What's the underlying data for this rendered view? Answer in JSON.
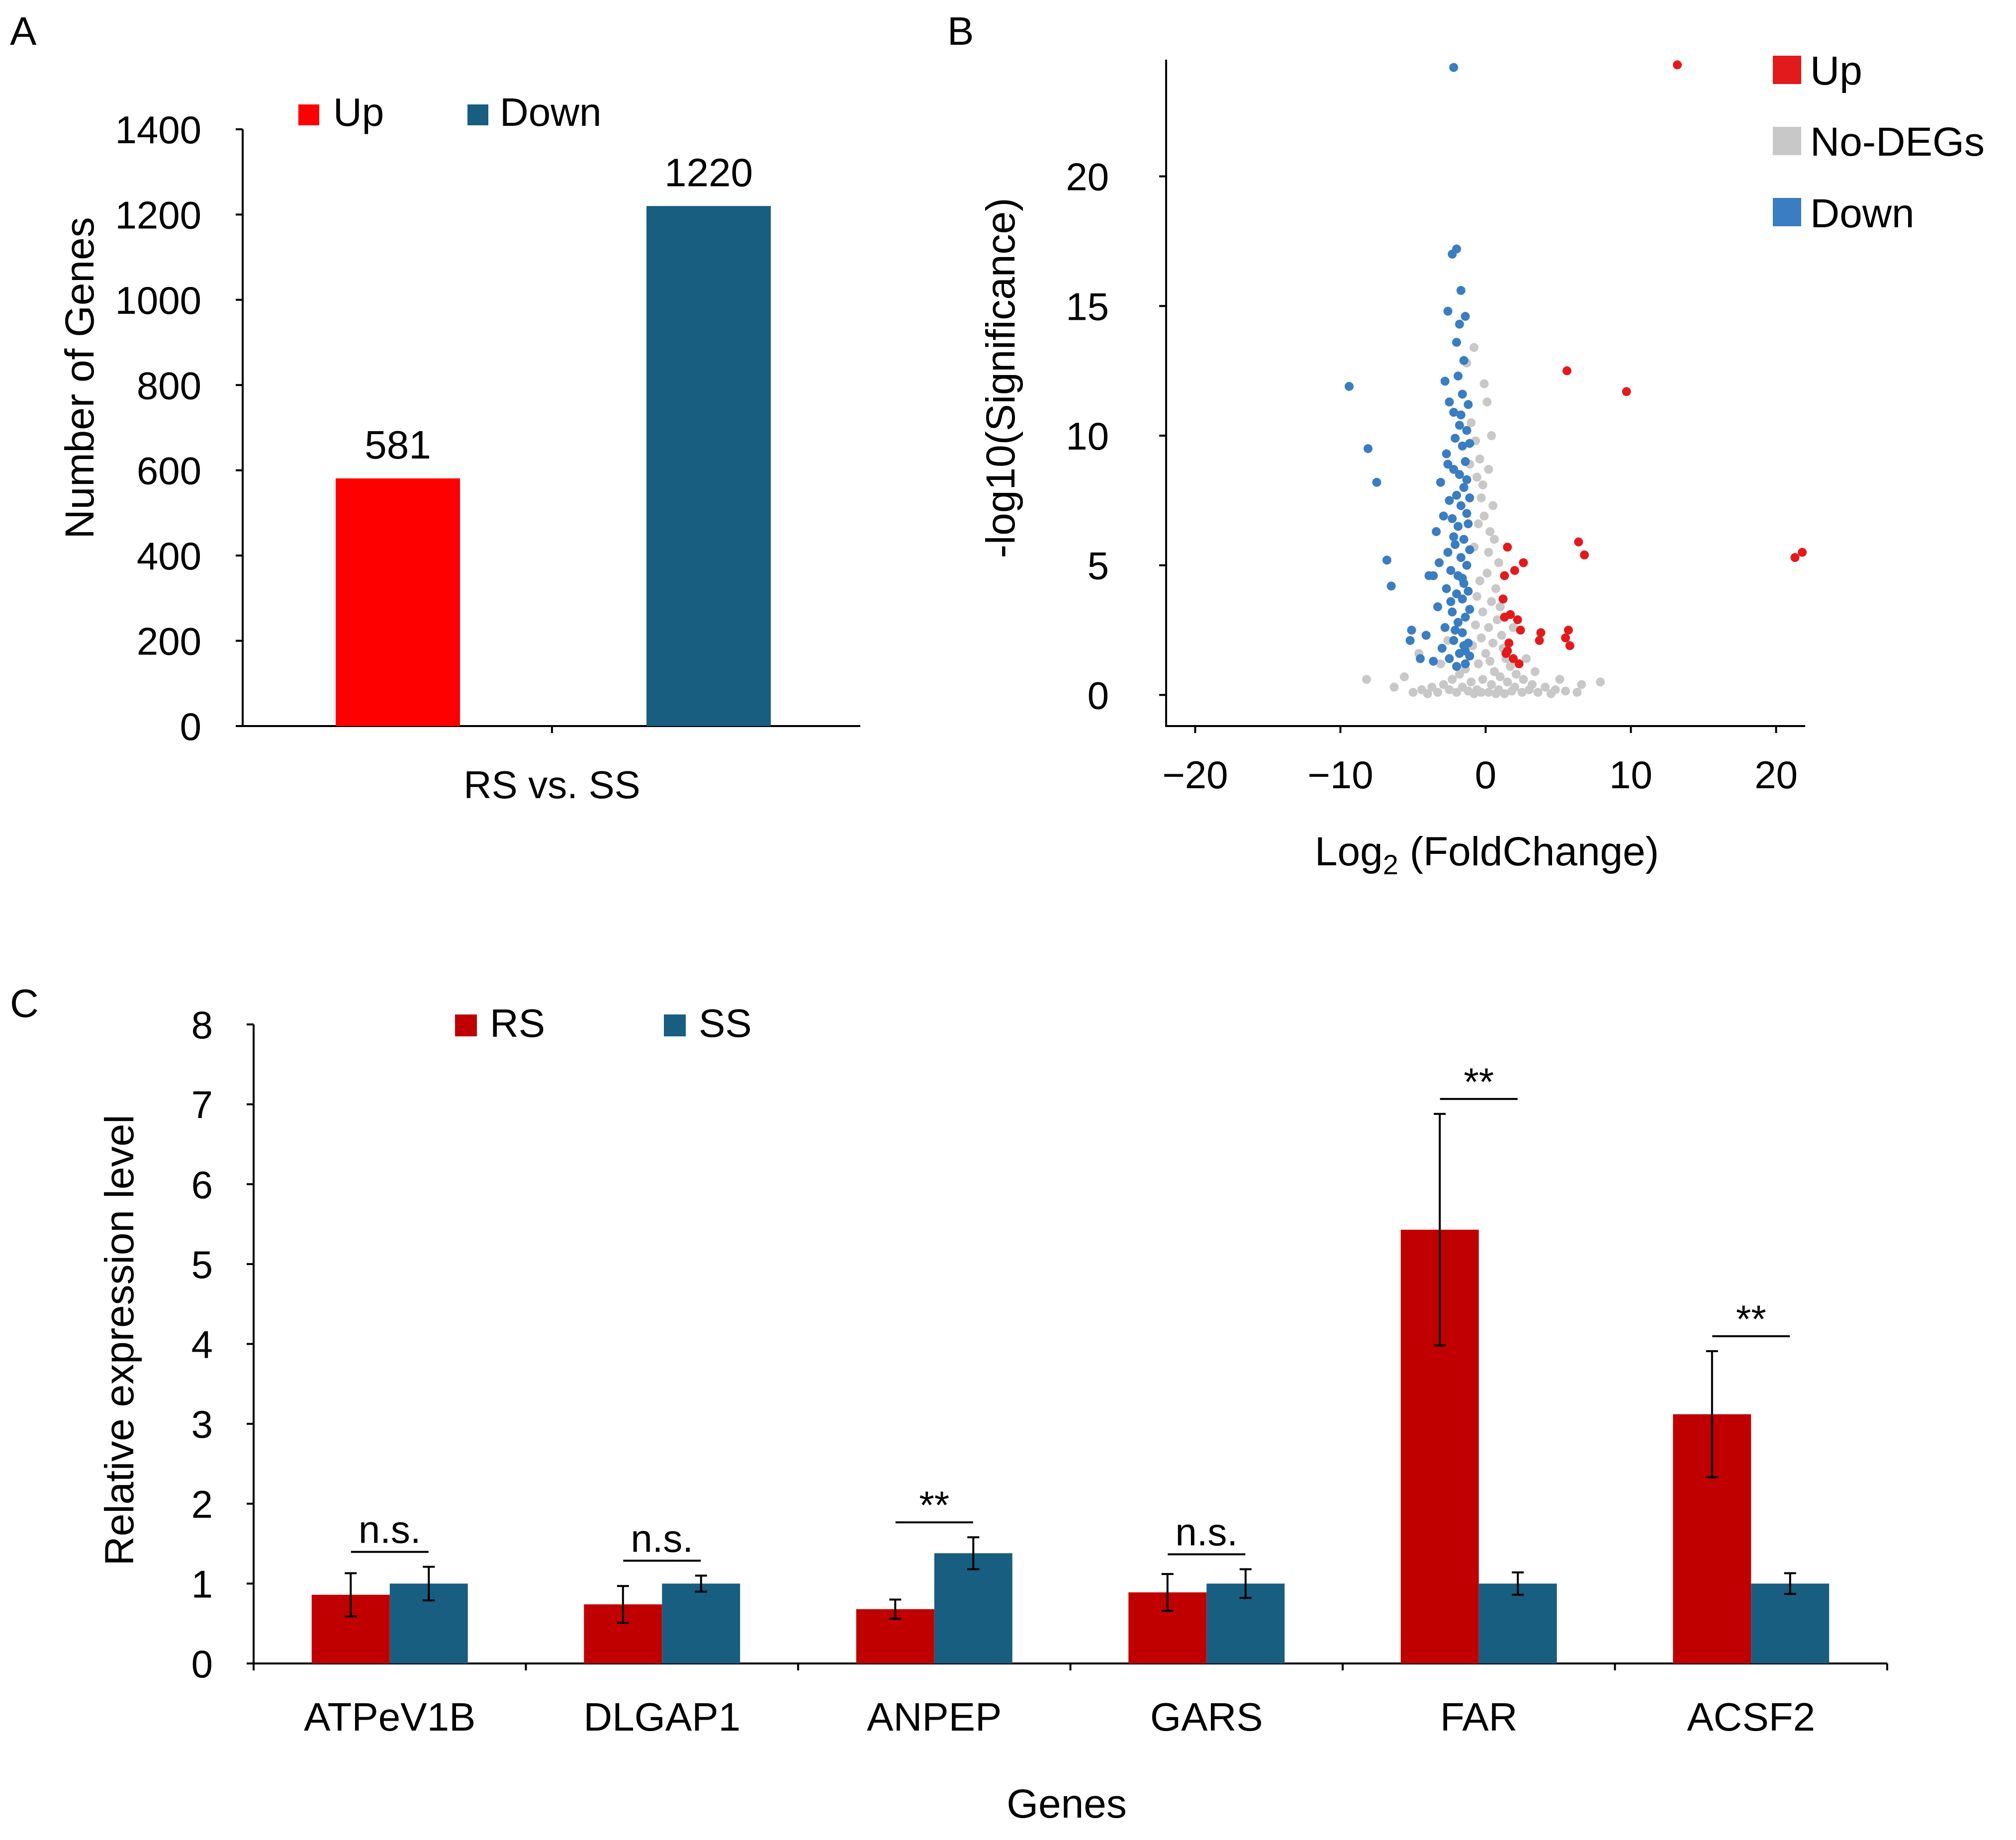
{
  "panels": {
    "a": "A",
    "b": "B",
    "c": "C"
  },
  "chart_data": [
    {
      "panel": "A",
      "type": "bar",
      "ylabel": "Number of Genes",
      "categories": [
        "RS vs. SS"
      ],
      "ylim": [
        0,
        1400
      ],
      "yticks": [
        0,
        200,
        400,
        600,
        800,
        1000,
        1200,
        1400
      ],
      "series": [
        {
          "name": "Up",
          "values": [
            581
          ],
          "color": "#ff0000",
          "labels": [
            "581"
          ]
        },
        {
          "name": "Down",
          "values": [
            1220
          ],
          "color": "#175e80",
          "labels": [
            "1220"
          ]
        }
      ],
      "legend": "top"
    },
    {
      "panel": "B",
      "type": "scatter",
      "xlabel_main": "Log",
      "xlabel_sub": "2",
      "xlabel_rest": " (FoldChange)",
      "ylabel": "-log10(Significance)",
      "xlim": [
        -22,
        22
      ],
      "ylim": [
        -1.2,
        24.5
      ],
      "xticks": [
        -20,
        -10,
        0,
        10,
        20
      ],
      "xtick_labels": [
        "−20",
        "−10",
        "0",
        "10",
        "20"
      ],
      "yticks": [
        0,
        5,
        10,
        15,
        20
      ],
      "legend": "top-right",
      "series": [
        {
          "name": "Up",
          "color": "#e31a1c",
          "points": [
            [
              13.2,
              24.3
            ],
            [
              5.6,
              12.5
            ],
            [
              9.7,
              11.7
            ],
            [
              21.8,
              5.5
            ],
            [
              21.3,
              5.3
            ],
            [
              6.4,
              5.9
            ],
            [
              6.8,
              5.4
            ],
            [
              1.5,
              5.7
            ],
            [
              2.0,
              4.8
            ],
            [
              1.3,
              4.6
            ],
            [
              2.6,
              5.1
            ],
            [
              1.2,
              3.7
            ],
            [
              1.7,
              3.1
            ],
            [
              2.2,
              2.9
            ],
            [
              2.4,
              2.5
            ],
            [
              1.3,
              3.0
            ],
            [
              3.8,
              2.4
            ],
            [
              3.7,
              2.1
            ],
            [
              5.7,
              2.5
            ],
            [
              5.5,
              2.2
            ],
            [
              5.8,
              1.9
            ],
            [
              1.4,
              1.6
            ],
            [
              1.9,
              1.4
            ],
            [
              2.3,
              1.2
            ],
            [
              1.6,
              2.0
            ],
            [
              1.5,
              1.7
            ]
          ]
        },
        {
          "name": "No-DEGs",
          "color": "#c8c8c8",
          "points": [
            [
              -1.3,
              12.8
            ],
            [
              -0.8,
              13.4
            ],
            [
              -1.0,
              10.5
            ],
            [
              -0.7,
              9.8
            ],
            [
              -0.4,
              9.1
            ],
            [
              -0.6,
              8.4
            ],
            [
              -1.1,
              8.9
            ],
            [
              -0.3,
              7.6
            ],
            [
              0.5,
              7.3
            ],
            [
              -0.2,
              8.1
            ],
            [
              -0.5,
              6.6
            ],
            [
              0.3,
              6.3
            ],
            [
              0.9,
              5.1
            ],
            [
              -0.1,
              6.9
            ],
            [
              0.6,
              6.0
            ],
            [
              -0.8,
              5.7
            ],
            [
              0.2,
              5.5
            ],
            [
              0.1,
              4.7
            ],
            [
              -0.4,
              4.4
            ],
            [
              0.7,
              4.1
            ],
            [
              -0.6,
              3.8
            ],
            [
              0.4,
              3.6
            ],
            [
              1.0,
              3.4
            ],
            [
              -0.2,
              3.2
            ],
            [
              0.8,
              2.9
            ],
            [
              -0.7,
              2.7
            ],
            [
              0.2,
              2.6
            ],
            [
              1.1,
              2.3
            ],
            [
              -0.3,
              2.2
            ],
            [
              0.5,
              2.0
            ],
            [
              -0.9,
              1.9
            ],
            [
              1.2,
              1.8
            ],
            [
              0.0,
              1.6
            ],
            [
              -1.1,
              1.5
            ],
            [
              1.4,
              1.4
            ],
            [
              0.3,
              1.3
            ],
            [
              -0.5,
              1.2
            ],
            [
              1.7,
              1.1
            ],
            [
              -1.4,
              1.0
            ],
            [
              0.6,
              0.9
            ],
            [
              2.1,
              0.8
            ],
            [
              -1.8,
              0.8
            ],
            [
              1.0,
              0.7
            ],
            [
              -0.2,
              0.6
            ],
            [
              2.6,
              0.6
            ],
            [
              -2.3,
              0.6
            ],
            [
              1.5,
              0.5
            ],
            [
              -1.0,
              0.5
            ],
            [
              3.2,
              0.4
            ],
            [
              -2.9,
              0.4
            ],
            [
              0.4,
              0.4
            ],
            [
              2.0,
              0.3
            ],
            [
              -1.6,
              0.3
            ],
            [
              4.1,
              0.3
            ],
            [
              -3.7,
              0.3
            ],
            [
              0.9,
              0.2
            ],
            [
              -0.6,
              0.2
            ],
            [
              3.0,
              0.2
            ],
            [
              -2.5,
              0.2
            ],
            [
              4.8,
              0.2
            ],
            [
              -4.4,
              0.2
            ],
            [
              1.8,
              0.15
            ],
            [
              -1.2,
              0.15
            ],
            [
              5.5,
              0.15
            ],
            [
              0.2,
              0.1
            ],
            [
              -0.3,
              0.1
            ],
            [
              2.5,
              0.1
            ],
            [
              -2.0,
              0.1
            ],
            [
              3.6,
              0.1
            ],
            [
              -3.3,
              0.1
            ],
            [
              6.3,
              0.1
            ],
            [
              -5.0,
              0.1
            ],
            [
              1.3,
              0.05
            ],
            [
              -0.8,
              0.05
            ],
            [
              4.5,
              0.05
            ],
            [
              -4.0,
              0.05
            ],
            [
              0.7,
              0.05
            ],
            [
              7.9,
              0.5
            ],
            [
              -8.2,
              0.6
            ],
            [
              -5.6,
              0.7
            ],
            [
              6.6,
              0.4
            ],
            [
              -6.3,
              0.3
            ],
            [
              5.1,
              0.6
            ],
            [
              -3.1,
              1.2
            ],
            [
              3.4,
              0.9
            ],
            [
              -4.6,
              1.6
            ],
            [
              2.8,
              1.4
            ],
            [
              -2.6,
              2.1
            ],
            [
              1.9,
              2.6
            ],
            [
              0.1,
              11.3
            ],
            [
              -0.1,
              12.0
            ],
            [
              0.4,
              10.0
            ],
            [
              0.2,
              8.7
            ]
          ]
        },
        {
          "name": "Down",
          "color": "#3a7dc1",
          "points": [
            [
              -2.2,
              24.2
            ],
            [
              -2.0,
              17.2
            ],
            [
              -2.3,
              17.0
            ],
            [
              -1.7,
              15.6
            ],
            [
              -2.6,
              14.8
            ],
            [
              -1.8,
              14.3
            ],
            [
              -1.4,
              14.6
            ],
            [
              -2.0,
              13.6
            ],
            [
              -1.5,
              12.9
            ],
            [
              -2.8,
              12.1
            ],
            [
              -1.9,
              12.3
            ],
            [
              -2.5,
              11.3
            ],
            [
              -1.6,
              11.6
            ],
            [
              -9.4,
              11.9
            ],
            [
              -2.2,
              10.9
            ],
            [
              -1.8,
              10.4
            ],
            [
              -1.3,
              10.2
            ],
            [
              -2.1,
              9.9
            ],
            [
              -1.6,
              9.6
            ],
            [
              -2.7,
              9.3
            ],
            [
              -8.1,
              9.5
            ],
            [
              -1.4,
              9.0
            ],
            [
              -2.2,
              8.7
            ],
            [
              -1.8,
              8.5
            ],
            [
              -3.1,
              8.2
            ],
            [
              -7.5,
              8.2
            ],
            [
              -1.5,
              8.0
            ],
            [
              -2.0,
              7.7
            ],
            [
              -2.5,
              7.5
            ],
            [
              -1.7,
              7.3
            ],
            [
              -1.3,
              7.0
            ],
            [
              -2.3,
              6.8
            ],
            [
              -1.9,
              6.5
            ],
            [
              -3.4,
              6.3
            ],
            [
              -1.5,
              6.0
            ],
            [
              -2.1,
              5.8
            ],
            [
              -2.6,
              5.5
            ],
            [
              -1.7,
              5.3
            ],
            [
              -1.3,
              5.0
            ],
            [
              -2.4,
              4.8
            ],
            [
              -1.9,
              4.6
            ],
            [
              -3.9,
              4.6
            ],
            [
              -3.6,
              4.6
            ],
            [
              -1.5,
              4.3
            ],
            [
              -2.7,
              4.1
            ],
            [
              -2.0,
              3.9
            ],
            [
              -1.6,
              3.7
            ],
            [
              -3.3,
              3.4
            ],
            [
              -2.3,
              3.2
            ],
            [
              -1.4,
              3.0
            ],
            [
              -1.9,
              2.8
            ],
            [
              -2.8,
              2.6
            ],
            [
              -1.6,
              2.4
            ],
            [
              -4.1,
              2.3
            ],
            [
              -2.2,
              2.1
            ],
            [
              -1.5,
              1.9
            ],
            [
              -3.0,
              1.8
            ],
            [
              -1.8,
              1.6
            ],
            [
              -2.5,
              1.4
            ],
            [
              -1.4,
              1.2
            ],
            [
              -2.0,
              1.1
            ],
            [
              -6.8,
              5.2
            ],
            [
              -6.5,
              4.2
            ],
            [
              -5.1,
              2.5
            ],
            [
              -5.2,
              2.1
            ],
            [
              -4.5,
              1.4
            ],
            [
              -3.6,
              1.3
            ],
            [
              -1.2,
              11.2
            ],
            [
              -1.3,
              8.3
            ],
            [
              -1.2,
              6.6
            ],
            [
              -1.2,
              4.0
            ],
            [
              -1.2,
              2.0
            ],
            [
              -2.9,
              6.9
            ],
            [
              -3.2,
              5.1
            ],
            [
              -2.4,
              3.6
            ],
            [
              -1.1,
              9.7
            ],
            [
              -1.1,
              7.6
            ],
            [
              -1.1,
              5.6
            ],
            [
              -1.1,
              3.3
            ],
            [
              -1.1,
              1.5
            ],
            [
              -1.7,
              10.8
            ],
            [
              -2.6,
              8.9
            ],
            [
              -2.2,
              6.1
            ],
            [
              -1.6,
              4.5
            ],
            [
              -2.1,
              2.5
            ],
            [
              -1.4,
              1.7
            ]
          ]
        }
      ]
    },
    {
      "panel": "C",
      "type": "bar",
      "xlabel": "Genes",
      "ylabel": "Relative expression level",
      "categories": [
        "ATPeV1B",
        "DLGAP1",
        "ANPEP",
        "GARS",
        "FAR",
        "ACSF2"
      ],
      "ylim": [
        0,
        8
      ],
      "yticks": [
        0,
        1,
        2,
        3,
        4,
        5,
        6,
        7,
        8
      ],
      "series": [
        {
          "name": "RS",
          "color": "#c00000",
          "values": [
            0.86,
            0.74,
            0.68,
            0.89,
            5.43,
            3.12
          ],
          "errors": [
            0.27,
            0.23,
            0.12,
            0.23,
            1.45,
            0.79
          ]
        },
        {
          "name": "SS",
          "color": "#175e80",
          "values": [
            1.0,
            1.0,
            1.38,
            1.0,
            1.0,
            1.0
          ],
          "errors": [
            0.21,
            0.1,
            0.2,
            0.18,
            0.14,
            0.13
          ]
        }
      ],
      "significance": [
        "n.s.",
        "n.s.",
        "**",
        "n.s.",
        "**",
        "**"
      ],
      "legend": "top"
    }
  ]
}
